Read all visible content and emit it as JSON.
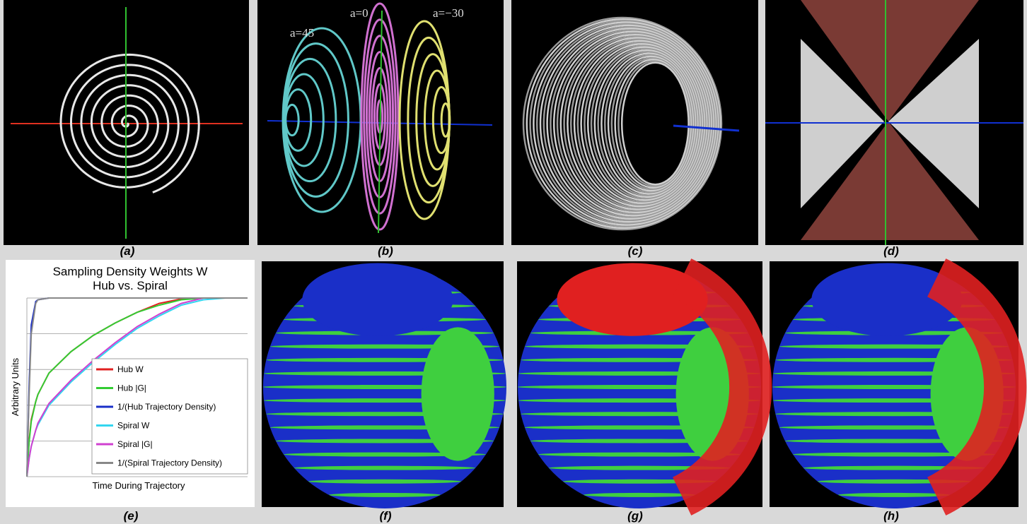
{
  "captions": [
    "(a)",
    "(b)",
    "(c)",
    "(d)",
    "(e)",
    "(f)",
    "(g)",
    "(h)"
  ],
  "panel_b_labels": [
    "a=45",
    "a=0",
    "a=−30"
  ],
  "chart_data": {
    "type": "line",
    "title": "Sampling Density Weights W",
    "subtitle": "Hub vs. Spiral",
    "x_label": "Time During Trajectory",
    "y_label": "Arbitrary Units",
    "xlim": [
      0,
      1
    ],
    "ylim": [
      0,
      1
    ],
    "grid": true,
    "legend": "lower right",
    "x": [
      0,
      0.01,
      0.02,
      0.04,
      0.05,
      0.1,
      0.2,
      0.3,
      0.4,
      0.5,
      0.6,
      0.7,
      0.8,
      0.9,
      1
    ],
    "series": [
      {
        "name": "Hub W",
        "color": "#e02020",
        "values": [
          0,
          0.2,
          0.32,
          0.42,
          0.46,
          0.58,
          0.7,
          0.79,
          0.86,
          0.92,
          0.97,
          0.995,
          1,
          1,
          1
        ]
      },
      {
        "name": "Hub |G|",
        "color": "#33cc33",
        "values": [
          0,
          0.19,
          0.31,
          0.42,
          0.46,
          0.58,
          0.7,
          0.79,
          0.86,
          0.92,
          0.96,
          0.99,
          1,
          1,
          1
        ]
      },
      {
        "name": "1/(Hub Trajectory Density)",
        "color": "#1a2fc8",
        "values": [
          0,
          0.5,
          0.85,
          0.98,
          0.99,
          1,
          1,
          1,
          1,
          1,
          1,
          1,
          1,
          1,
          1
        ]
      },
      {
        "name": "Spiral W",
        "color": "#33d6f0",
        "values": [
          0,
          0.1,
          0.17,
          0.26,
          0.29,
          0.4,
          0.53,
          0.64,
          0.74,
          0.83,
          0.9,
          0.96,
          0.99,
          1,
          1
        ]
      },
      {
        "name": "Spiral |G|",
        "color": "#d040d0",
        "values": [
          0,
          0.1,
          0.17,
          0.26,
          0.3,
          0.41,
          0.54,
          0.65,
          0.75,
          0.84,
          0.91,
          0.97,
          1,
          1,
          1
        ]
      },
      {
        "name": "1/(Spiral Trajectory Density)",
        "color": "#888888",
        "values": [
          0,
          0.45,
          0.8,
          0.97,
          0.99,
          1,
          1,
          1,
          1,
          1,
          1,
          1,
          1,
          1,
          1
        ]
      }
    ]
  }
}
